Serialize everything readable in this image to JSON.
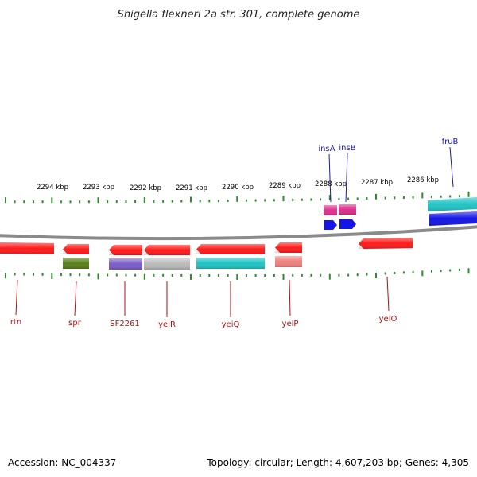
{
  "title": "Shigella flexneri 2a str. 301, complete genome",
  "footer": {
    "accession": "Accession: NC_004337",
    "summary": "Topology: circular; Length: 4,607,203 bp; Genes: 4,305"
  },
  "colors": {
    "backbone": "#8a8a8a",
    "tick": "#2e8b2e",
    "label_forward": "#1a1aa6",
    "label_reverse": "#b01010"
  },
  "scale": {
    "unit": "kbp",
    "labels": [
      "2294 kbp",
      "2293 kbp",
      "2292 kbp",
      "2291 kbp",
      "2290 kbp",
      "2289 kbp",
      "2288 kbp",
      "2287 kbp",
      "2286 kbp"
    ]
  },
  "genes": {
    "forward": [
      {
        "name": "insA",
        "color": "#e0308f"
      },
      {
        "name": "insB",
        "color": "#e0308f"
      },
      {
        "name": "fruB",
        "color": "#20c4c4"
      }
    ],
    "reverse": [
      {
        "name": "rtn",
        "color": "#ff1a1a"
      },
      {
        "name": "spr",
        "color": "#ff1a1a"
      },
      {
        "name": "SF2261",
        "color": "#ff1a1a"
      },
      {
        "name": "yeiR",
        "color": "#ff1a1a"
      },
      {
        "name": "yeiQ",
        "color": "#ff1a1a"
      },
      {
        "name": "yeiP",
        "color": "#ff1a1a"
      },
      {
        "name": "yeiO",
        "color": "#ff1a1a"
      }
    ]
  }
}
